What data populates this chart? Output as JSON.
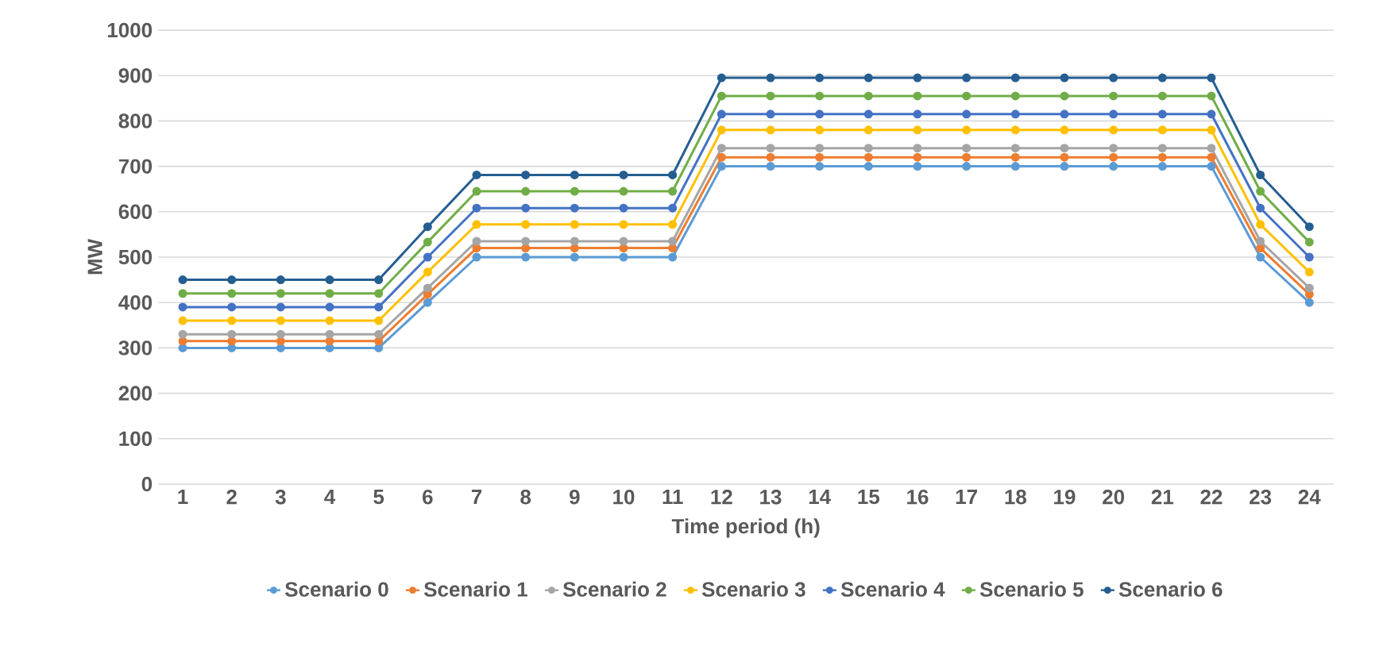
{
  "chart_data": {
    "type": "line",
    "xlabel": "Time period (h)",
    "ylabel": "MW",
    "categories": [
      "1",
      "2",
      "3",
      "4",
      "5",
      "6",
      "7",
      "8",
      "9",
      "10",
      "11",
      "12",
      "13",
      "14",
      "15",
      "16",
      "17",
      "18",
      "19",
      "20",
      "21",
      "22",
      "23",
      "24"
    ],
    "ylim": [
      0,
      1000
    ],
    "yticks": [
      0,
      100,
      200,
      300,
      400,
      500,
      600,
      700,
      800,
      900,
      1000
    ],
    "grid": "y",
    "legend": "bottom",
    "marker": "circle",
    "line_style": "solid",
    "series": [
      {
        "name": "Scenario 0",
        "color": "#5b9bd5",
        "values": [
          300,
          300,
          300,
          300,
          300,
          400,
          500,
          500,
          500,
          500,
          500,
          700,
          700,
          700,
          700,
          700,
          700,
          700,
          700,
          700,
          700,
          700,
          500,
          400
        ]
      },
      {
        "name": "Scenario 1",
        "color": "#ed7d31",
        "values": [
          315,
          315,
          315,
          315,
          315,
          418,
          520,
          520,
          520,
          520,
          520,
          720,
          720,
          720,
          720,
          720,
          720,
          720,
          720,
          720,
          720,
          720,
          520,
          418
        ]
      },
      {
        "name": "Scenario 2",
        "color": "#a5a5a5",
        "values": [
          330,
          330,
          330,
          330,
          330,
          432,
          535,
          535,
          535,
          535,
          535,
          740,
          740,
          740,
          740,
          740,
          740,
          740,
          740,
          740,
          740,
          740,
          535,
          432
        ]
      },
      {
        "name": "Scenario 3",
        "color": "#ffc000",
        "values": [
          360,
          360,
          360,
          360,
          360,
          467,
          572,
          572,
          572,
          572,
          572,
          780,
          780,
          780,
          780,
          780,
          780,
          780,
          780,
          780,
          780,
          780,
          572,
          467
        ]
      },
      {
        "name": "Scenario 4",
        "color": "#4472c4",
        "values": [
          390,
          390,
          390,
          390,
          390,
          500,
          608,
          608,
          608,
          608,
          608,
          815,
          815,
          815,
          815,
          815,
          815,
          815,
          815,
          815,
          815,
          815,
          608,
          500
        ]
      },
      {
        "name": "Scenario 5",
        "color": "#70ad47",
        "values": [
          420,
          420,
          420,
          420,
          420,
          533,
          645,
          645,
          645,
          645,
          645,
          855,
          855,
          855,
          855,
          855,
          855,
          855,
          855,
          855,
          855,
          855,
          645,
          533
        ]
      },
      {
        "name": "Scenario 6",
        "color": "#255e91",
        "values": [
          450,
          450,
          450,
          450,
          450,
          567,
          681,
          681,
          681,
          681,
          681,
          895,
          895,
          895,
          895,
          895,
          895,
          895,
          895,
          895,
          895,
          895,
          681,
          567
        ]
      }
    ]
  }
}
